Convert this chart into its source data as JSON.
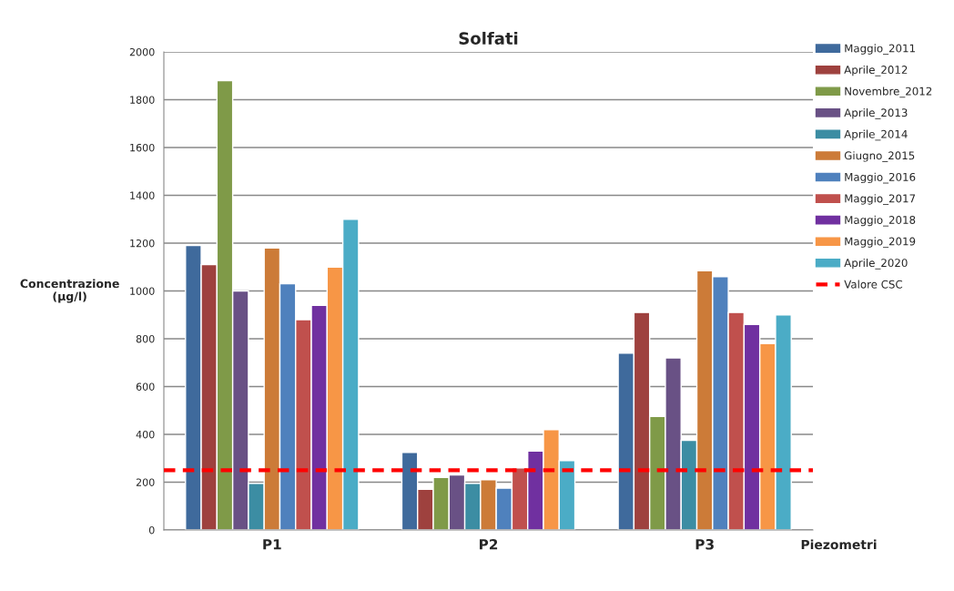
{
  "chart_data": {
    "type": "bar",
    "title": "Solfati",
    "xlabel": "Piezometri",
    "ylabel": "Concentrazione\n(µg/l)",
    "categories": [
      "P1",
      "P2",
      "P3"
    ],
    "series": [
      {
        "name": "Maggio_2011",
        "color": "#3f6a9c",
        "values": [
          1190,
          325,
          740
        ]
      },
      {
        "name": "Aprile_2012",
        "color": "#9e413e",
        "values": [
          1110,
          170,
          910
        ]
      },
      {
        "name": "Novembre_2012",
        "color": "#7f9a48",
        "values": [
          1880,
          220,
          475
        ]
      },
      {
        "name": "Aprile_2013",
        "color": "#695185",
        "values": [
          1000,
          230,
          720
        ]
      },
      {
        "name": "Aprile_2014",
        "color": "#3c8da3",
        "values": [
          195,
          195,
          375
        ]
      },
      {
        "name": "Giugno_2015",
        "color": "#cc7b38",
        "values": [
          1180,
          210,
          1085
        ]
      },
      {
        "name": "Maggio_2016",
        "color": "#4f81bd",
        "values": [
          1030,
          175,
          1060
        ]
      },
      {
        "name": "Maggio_2017",
        "color": "#c0504d",
        "values": [
          880,
          260,
          910
        ]
      },
      {
        "name": "Maggio_2018",
        "color": "#7030a0",
        "values": [
          940,
          330,
          860
        ]
      },
      {
        "name": "Maggio_2019",
        "color": "#f79646",
        "values": [
          1100,
          420,
          780
        ]
      },
      {
        "name": "Aprile_2020",
        "color": "#4bacc6",
        "values": [
          1300,
          290,
          900
        ]
      }
    ],
    "ref_lines": [
      {
        "axis": "y",
        "value": 250,
        "label": "Valore CSC",
        "color": "#ff0000",
        "line_style": "dashed"
      }
    ],
    "ylim": [
      0,
      2000
    ],
    "yticks": [
      0,
      200,
      400,
      600,
      800,
      1000,
      1200,
      1400,
      1600,
      1800,
      2000
    ],
    "grid": "y",
    "legend": "right"
  }
}
